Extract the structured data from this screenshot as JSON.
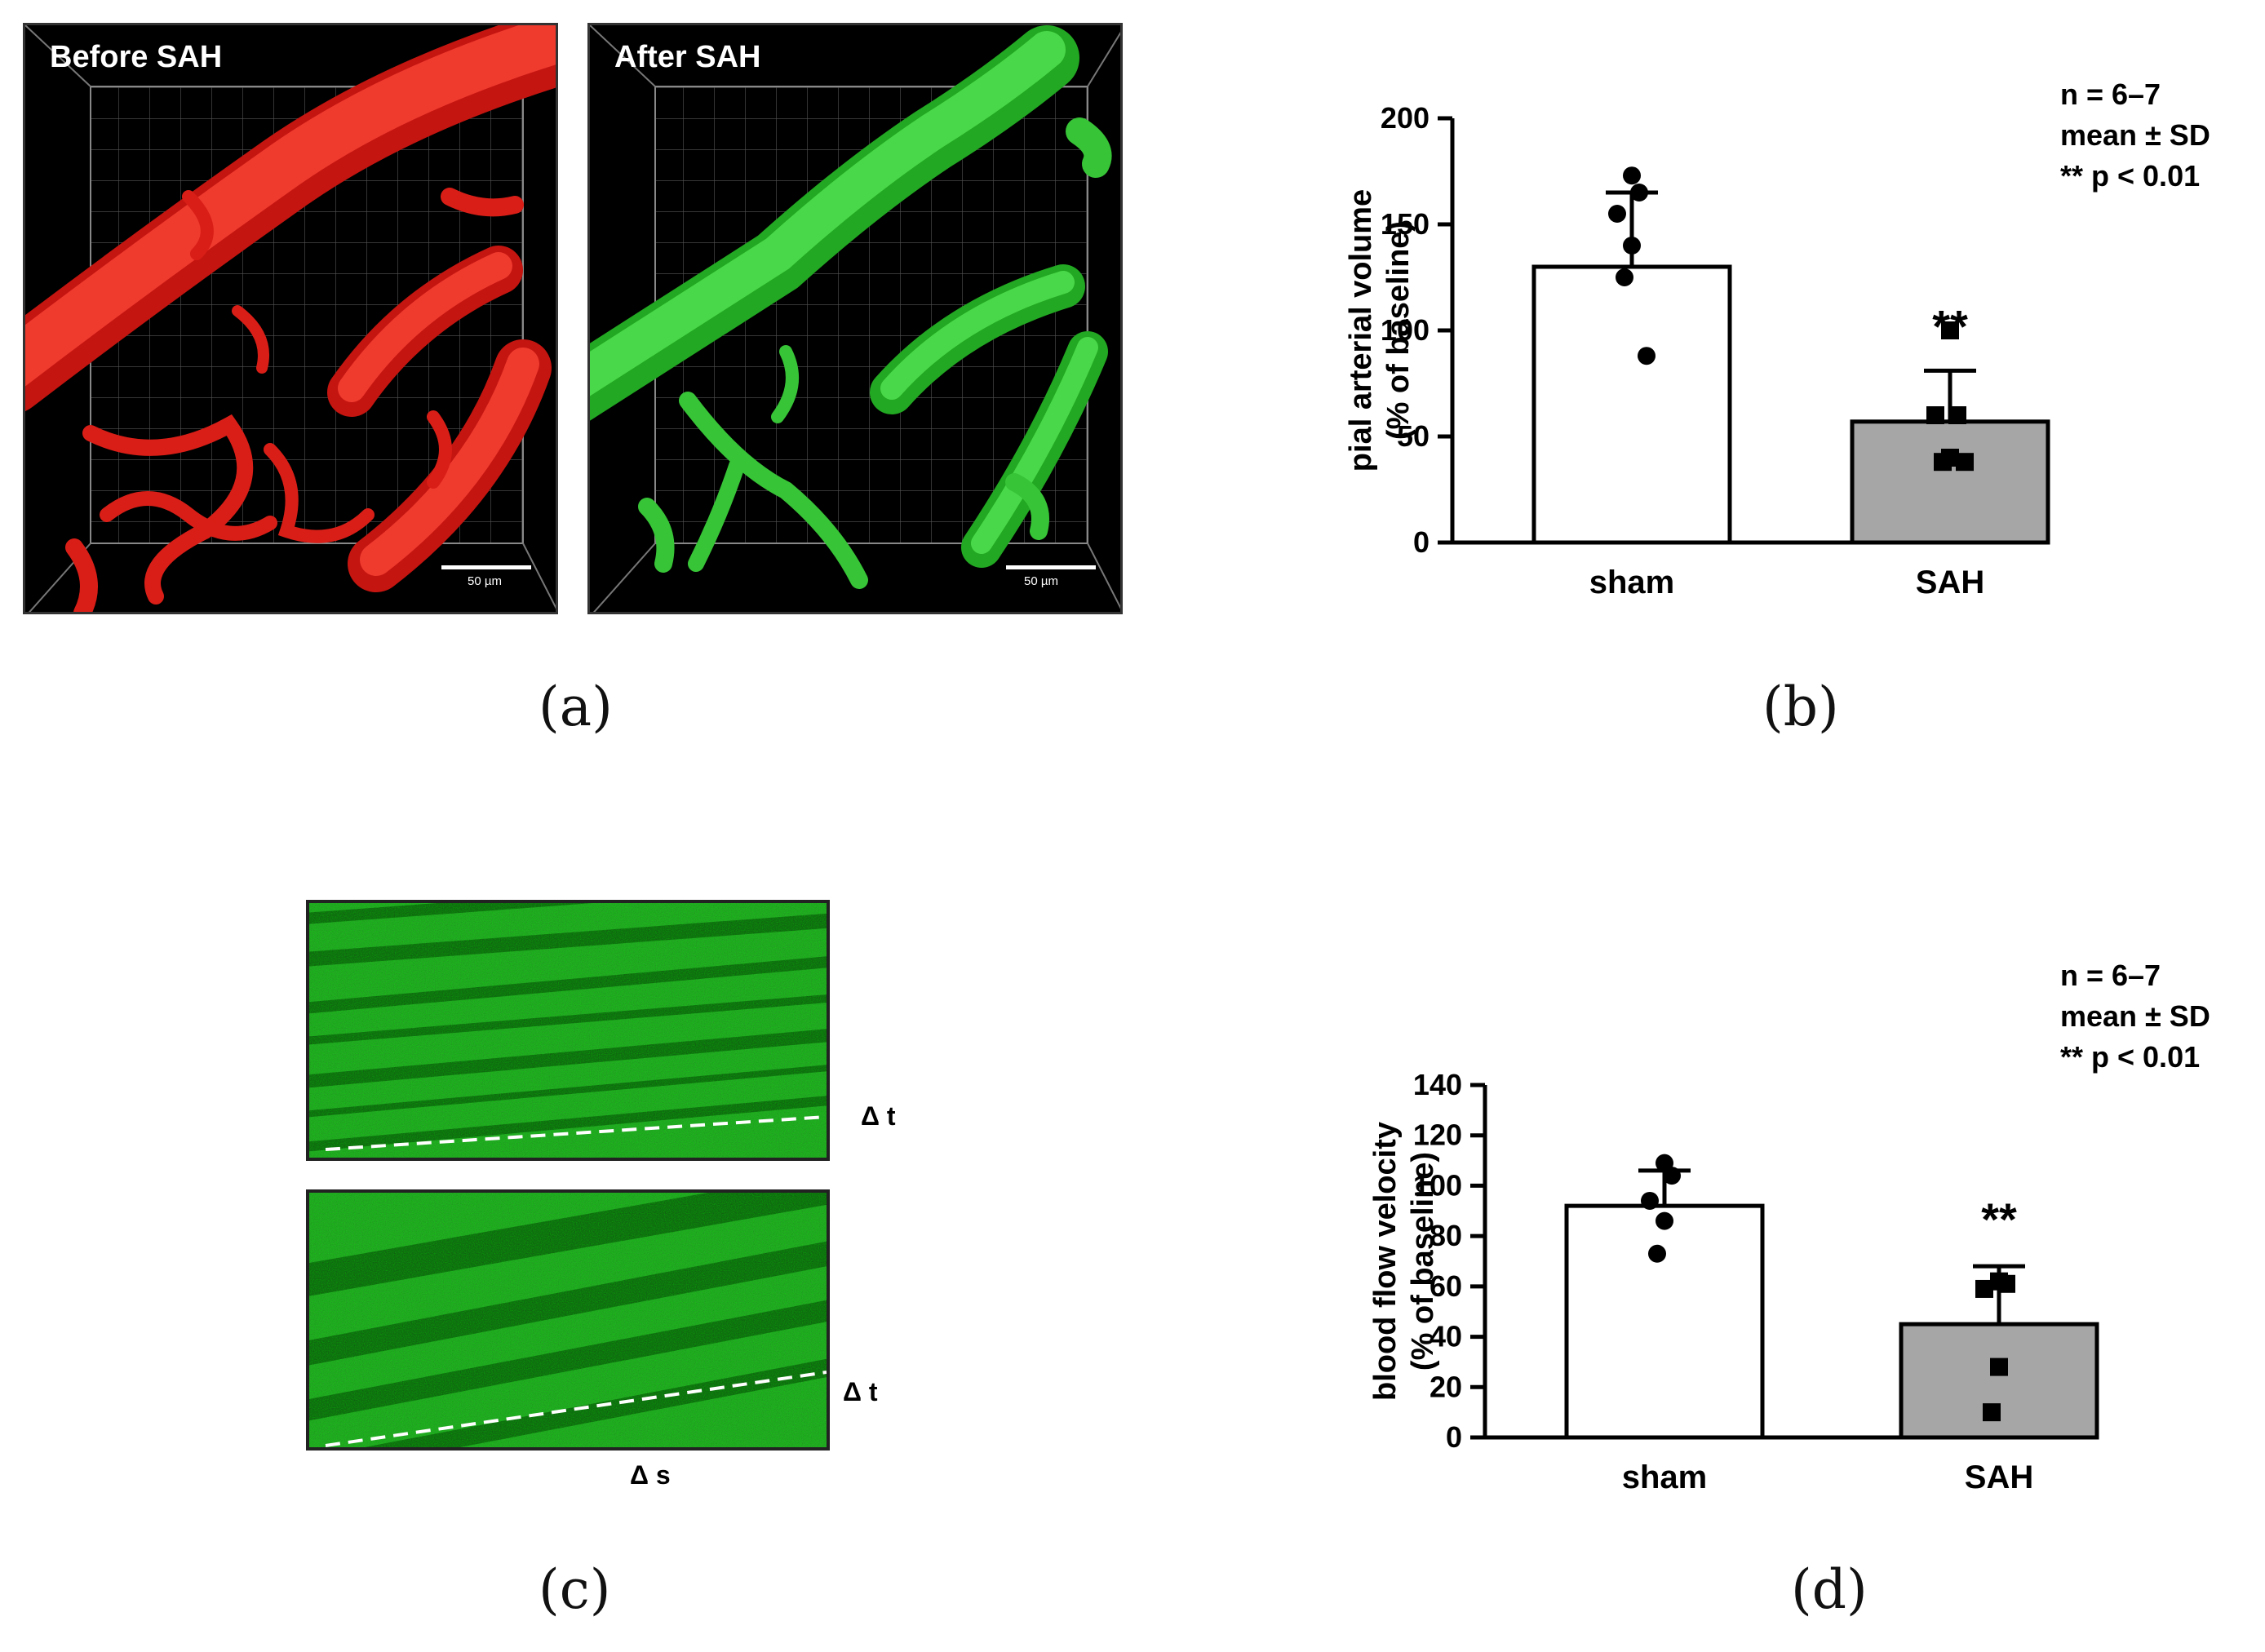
{
  "panel_a": {
    "label": "(a)",
    "left_title": "Before SAH",
    "right_title": "After SAH",
    "scale_bar_left": "50 µm",
    "scale_bar_right": "50 µm",
    "colors": {
      "before": "#e0251c",
      "after": "#32c832"
    }
  },
  "panel_c": {
    "label": "(c)",
    "delta_t_top": "Δ t",
    "delta_t_bottom": "Δ t",
    "delta_s": "Δ s",
    "colors": {
      "kymograph": "#2f9a2f"
    }
  },
  "panel_b": {
    "label": "(b)"
  },
  "panel_d": {
    "label": "(d)"
  },
  "chart_data": [
    {
      "id": "b",
      "type": "bar",
      "categories": [
        "sham",
        "SAH"
      ],
      "values": [
        130,
        57
      ],
      "error_sd": [
        35,
        24
      ],
      "points": [
        [
          173,
          165,
          155,
          140,
          125,
          88
        ],
        [
          100,
          60,
          60,
          40,
          38,
          38
        ]
      ],
      "marker": [
        "circle",
        "square"
      ],
      "bar_colors": [
        "#ffffff",
        "#a6a6a6"
      ],
      "ylabel": "pial arterial volume\n(% of baseline)",
      "ylim": [
        0,
        200
      ],
      "yticks": [
        0,
        50,
        100,
        150,
        200
      ],
      "annotation": [
        "n = 6–7",
        "mean ± SD",
        "** p < 0.01"
      ],
      "significance": "**"
    },
    {
      "id": "d",
      "type": "bar",
      "categories": [
        "sham",
        "SAH"
      ],
      "values": [
        92,
        45
      ],
      "error_sd": [
        14,
        23
      ],
      "points": [
        [
          109,
          104,
          94,
          86,
          73
        ],
        [
          62,
          61,
          59,
          28,
          10
        ]
      ],
      "marker": [
        "circle",
        "square"
      ],
      "bar_colors": [
        "#ffffff",
        "#a6a6a6"
      ],
      "ylabel": "blood flow velocity\n(% of baseline)",
      "ylim": [
        0,
        140
      ],
      "yticks": [
        0,
        20,
        40,
        60,
        80,
        100,
        120,
        140
      ],
      "annotation": [
        "n = 6–7",
        "mean ± SD",
        "** p < 0.01"
      ],
      "significance": "**"
    }
  ]
}
